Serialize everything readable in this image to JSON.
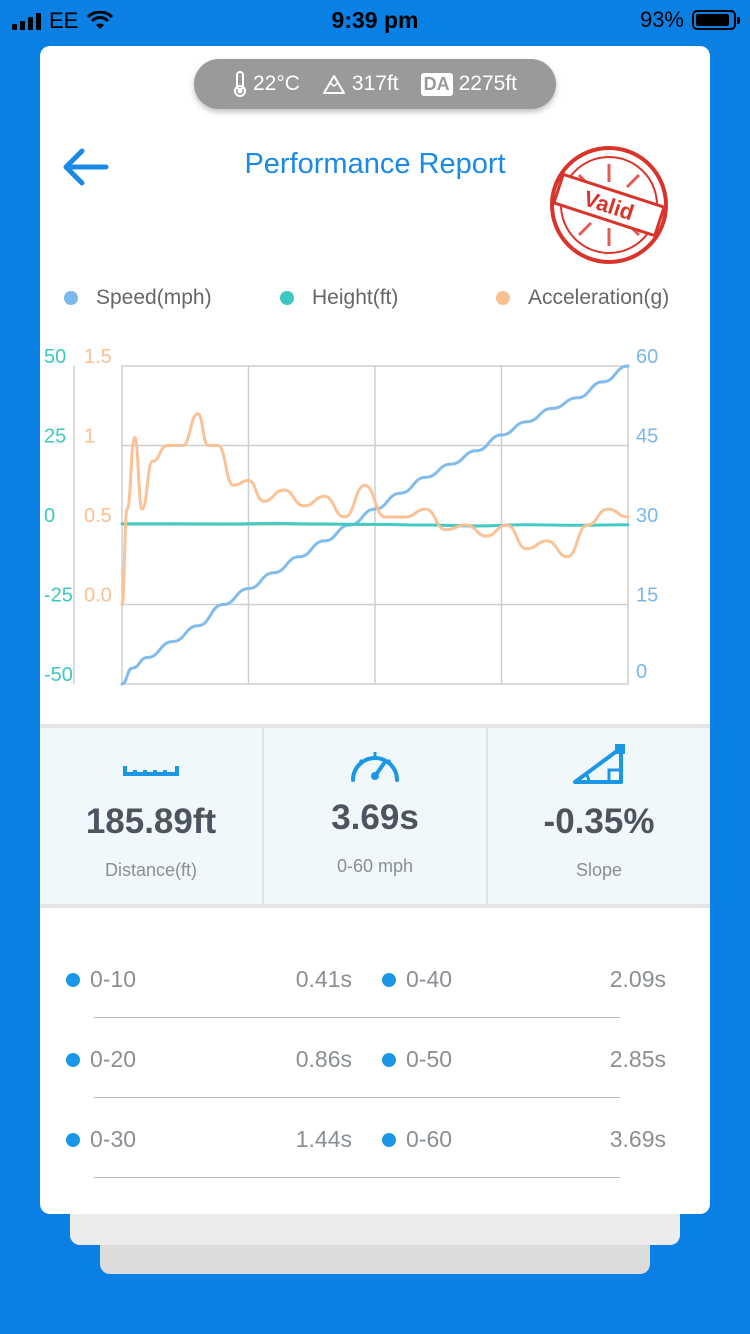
{
  "status_bar": {
    "carrier": "EE",
    "time": "9:39 pm",
    "battery": "93%"
  },
  "conditions": {
    "temperature": "22°C",
    "altitude": "317ft",
    "da_label": "DA",
    "density_altitude": "2275ft"
  },
  "header": {
    "title": "Performance Report",
    "stamp_text": "Valid"
  },
  "colors": {
    "accent": "#1a8ae6",
    "speed": "#7ab8ec",
    "height": "#3cc8c0",
    "acceleration": "#fbbf91"
  },
  "chart_data": {
    "type": "line",
    "legend_position": "top",
    "grid": true,
    "series": [
      {
        "name": "Speed(mph)",
        "axis": "right",
        "x": [
          0,
          0.02,
          0.05,
          0.1,
          0.15,
          0.2,
          0.25,
          0.3,
          0.35,
          0.4,
          0.45,
          0.5,
          0.55,
          0.6,
          0.65,
          0.7,
          0.75,
          0.8,
          0.85,
          0.9,
          0.95,
          1.0
        ],
        "values": [
          0,
          3,
          5,
          8,
          11,
          15,
          18,
          21,
          24,
          27,
          30,
          33,
          36,
          39,
          41.5,
          44,
          47,
          49.5,
          52,
          54,
          57,
          60
        ]
      },
      {
        "name": "Height(ft)",
        "axis": "left_outer",
        "x": [
          0,
          0.1,
          0.2,
          0.3,
          0.4,
          0.5,
          0.6,
          0.7,
          0.8,
          0.9,
          1.0
        ],
        "values": [
          0.4,
          0.4,
          0.3,
          0.5,
          0.3,
          0.2,
          0,
          -0.3,
          0.1,
          -0.1,
          0.1
        ]
      },
      {
        "name": "Acceleration(g)",
        "axis": "left_inner",
        "x": [
          0,
          0.01,
          0.025,
          0.04,
          0.06,
          0.09,
          0.12,
          0.15,
          0.17,
          0.19,
          0.22,
          0.25,
          0.28,
          0.32,
          0.36,
          0.4,
          0.44,
          0.48,
          0.52,
          0.56,
          0.6,
          0.64,
          0.68,
          0.72,
          0.76,
          0.8,
          0.84,
          0.88,
          0.92,
          0.96,
          1.0
        ],
        "values": [
          0,
          0.6,
          1.05,
          0.6,
          0.9,
          1.0,
          1.0,
          1.2,
          1.0,
          1.0,
          0.75,
          0.78,
          0.65,
          0.72,
          0.62,
          0.68,
          0.55,
          0.75,
          0.55,
          0.55,
          0.6,
          0.47,
          0.5,
          0.43,
          0.5,
          0.35,
          0.4,
          0.3,
          0.5,
          0.6,
          0.55
        ]
      }
    ],
    "axes": {
      "left_outer": {
        "ticks": [
          "50",
          "25",
          "0",
          "-25",
          "-50"
        ],
        "range": [
          -50,
          50
        ]
      },
      "left_inner": {
        "ticks": [
          "1.5",
          "1",
          "0.5",
          "0.0"
        ],
        "range": [
          -0.5,
          1.5
        ]
      },
      "right": {
        "ticks": [
          "60",
          "45",
          "30",
          "15",
          "0"
        ],
        "range": [
          0,
          60
        ]
      }
    }
  },
  "stats": [
    {
      "value": "185.89ft",
      "label": "Distance(ft)",
      "icon": "ruler-icon"
    },
    {
      "value": "3.69s",
      "label": "0-60 mph",
      "icon": "speedometer-icon"
    },
    {
      "value": "-0.35%",
      "label": "Slope",
      "icon": "slope-icon"
    }
  ],
  "splits": [
    {
      "left": {
        "label": "0-10",
        "time": "0.41s"
      },
      "right": {
        "label": "0-40",
        "time": "2.09s"
      }
    },
    {
      "left": {
        "label": "0-20",
        "time": "0.86s"
      },
      "right": {
        "label": "0-50",
        "time": "2.85s"
      }
    },
    {
      "left": {
        "label": "0-30",
        "time": "1.44s"
      },
      "right": {
        "label": "0-60",
        "time": "3.69s"
      }
    }
  ]
}
